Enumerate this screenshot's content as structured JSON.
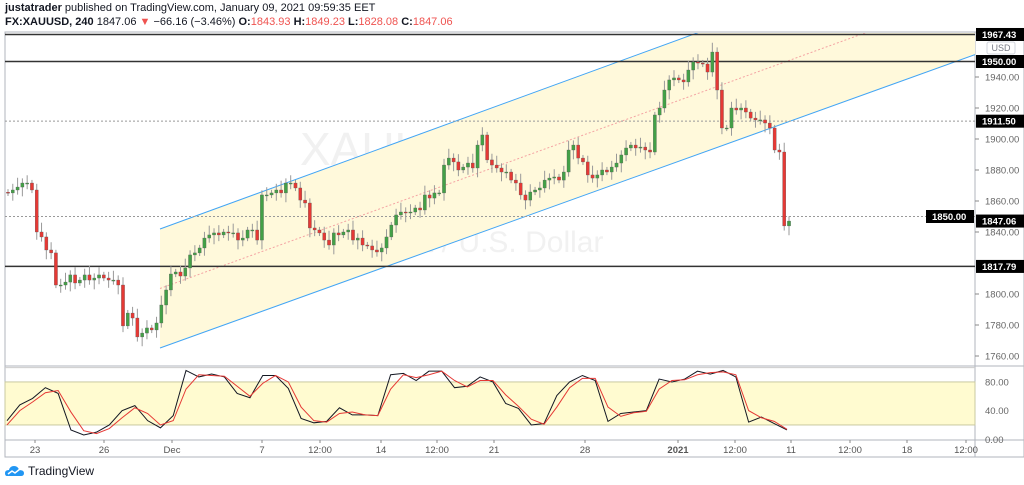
{
  "header": {
    "author": "justatrader",
    "published": "published on TradingView.com, January 09, 2021 09:59:35 EET",
    "symbol": "FX:XAUUSD, 240",
    "last": "1847.06",
    "change": "−66.16 (−3.46%)",
    "o_label": "O:",
    "o": "1843.93",
    "h_label": "H:",
    "h": "1849.23",
    "l_label": "L:",
    "l": "1828.08",
    "c_label": "C:",
    "c": "1847.06"
  },
  "watermark": {
    "symbol": "XAUUSD, 240",
    "description": "Gold Spot / U.S. Dollar"
  },
  "currency": "USD",
  "brand": "TradingView",
  "colors": {
    "up": "#43a047",
    "down": "#e53935",
    "channel_fill": "#fff9db",
    "channel_line": "#42a5f5",
    "median": "#f4a3a3",
    "stoch_k": "#131722",
    "stoch_d": "#e53935",
    "stoch_band": "#fffbd0"
  },
  "chart_data": [
    {
      "type": "candlestick",
      "title": "FX:XAUUSD, 240",
      "ylim": [
        1750,
        1967.43
      ],
      "y_ticks": [
        "1940.00",
        "1920.00",
        "1900.00",
        "1880.00",
        "1860.00",
        "1840.00",
        "1800.00",
        "1780.00",
        "1760.00"
      ],
      "x_ticks": [
        "23",
        "26",
        "Dec",
        "7",
        "12:00",
        "14",
        "12:00",
        "21",
        "28",
        "2021",
        "12:00",
        "11",
        "12:00",
        "18",
        "12:00"
      ],
      "price_badges": [
        "1967.43",
        "1950.00",
        "1911.50",
        "1850.00",
        "1847.06",
        "1817.79"
      ],
      "horizontal_levels": [
        {
          "price": 1967.43,
          "style": "solid"
        },
        {
          "price": 1950.0,
          "style": "solid"
        },
        {
          "price": 1911.5,
          "style": "dotted"
        },
        {
          "price": 1850.0,
          "style": "dotted"
        },
        {
          "price": 1817.79,
          "style": "solid"
        }
      ],
      "drawing": "parallel channel",
      "closes": [
        1865.2,
        1867.1,
        1869.0,
        1871.6,
        1871.6,
        1867.1,
        1840.0,
        1836.8,
        1828.4,
        1826.5,
        1805.8,
        1805.8,
        1807.7,
        1812.3,
        1807.1,
        1809.0,
        1812.3,
        1809.0,
        1810.3,
        1812.3,
        1810.3,
        1809.0,
        1809.0,
        1805.8,
        1779.4,
        1787.7,
        1784.5,
        1772.3,
        1774.8,
        1778.1,
        1776.8,
        1781.3,
        1792.9,
        1802.6,
        1812.9,
        1814.2,
        1811.6,
        1816.8,
        1825.2,
        1826.5,
        1829.7,
        1836.1,
        1838.1,
        1839.4,
        1838.1,
        1840.0,
        1839.4,
        1839.4,
        1834.8,
        1836.1,
        1841.3,
        1841.3,
        1834.8,
        1863.9,
        1863.9,
        1865.2,
        1867.1,
        1865.2,
        1871.6,
        1871.6,
        1868.4,
        1860.6,
        1858.7,
        1842.6,
        1841.3,
        1839.4,
        1834.8,
        1831.6,
        1839.4,
        1838.1,
        1840.0,
        1841.3,
        1834.8,
        1836.1,
        1831.6,
        1831.0,
        1828.4,
        1827.1,
        1829.7,
        1836.8,
        1844.5,
        1851.0,
        1852.9,
        1852.3,
        1852.9,
        1855.5,
        1854.2,
        1863.9,
        1861.9,
        1865.2,
        1865.2,
        1883.2,
        1887.7,
        1885.2,
        1880.0,
        1881.9,
        1884.5,
        1881.3,
        1896.1,
        1902.6,
        1886.5,
        1883.2,
        1881.3,
        1878.7,
        1878.7,
        1873.5,
        1871.6,
        1863.9,
        1860.6,
        1865.8,
        1867.1,
        1868.4,
        1873.5,
        1874.8,
        1875.5,
        1873.5,
        1878.7,
        1892.9,
        1896.1,
        1887.7,
        1885.2,
        1876.8,
        1874.8,
        1876.8,
        1880.0,
        1878.7,
        1881.9,
        1884.5,
        1889.7,
        1894.2,
        1896.1,
        1894.2,
        1894.8,
        1892.9,
        1891.6,
        1915.5,
        1920.0,
        1931.6,
        1938.1,
        1939.4,
        1938.1,
        1936.8,
        1944.5,
        1949.7,
        1949.0,
        1948.4,
        1943.2,
        1956.1,
        1931.6,
        1907.1,
        1907.1,
        1920.0,
        1918.7,
        1920.0,
        1917.4,
        1913.5,
        1912.3,
        1912.3,
        1910.3,
        1907.1,
        1892.9,
        1891.6,
        1843.93,
        1847.06
      ]
    },
    {
      "type": "line",
      "title": "Stochastic",
      "ylim": [
        0,
        100
      ],
      "y_ticks": [
        "80.00",
        "40.00",
        "0.00"
      ],
      "band": [
        20,
        80
      ],
      "series": [
        {
          "key": "k",
          "values": [
            26,
            48,
            57,
            72,
            64,
            13,
            6,
            10,
            20,
            40,
            47,
            26,
            16,
            33,
            96,
            87,
            91,
            87,
            64,
            58,
            89,
            89,
            71,
            29,
            23,
            25,
            44,
            34,
            34,
            33,
            90,
            92,
            82,
            95,
            95,
            72,
            74,
            87,
            80,
            50,
            43,
            20,
            22,
            61,
            80,
            89,
            82,
            25,
            36,
            38,
            40,
            84,
            80,
            84,
            95,
            91,
            96,
            87,
            24,
            31,
            22,
            13
          ]
        },
        {
          "key": "d",
          "values": [
            20,
            40,
            52,
            65,
            68,
            38,
            12,
            8,
            15,
            30,
            44,
            36,
            20,
            26,
            70,
            90,
            89,
            88,
            74,
            60,
            78,
            89,
            80,
            45,
            26,
            24,
            36,
            38,
            34,
            33,
            70,
            90,
            86,
            90,
            95,
            82,
            73,
            82,
            82,
            62,
            46,
            28,
            21,
            45,
            72,
            85,
            85,
            45,
            32,
            37,
            39,
            70,
            82,
            83,
            90,
            93,
            94,
            90,
            40,
            30,
            25,
            14
          ]
        }
      ]
    }
  ]
}
